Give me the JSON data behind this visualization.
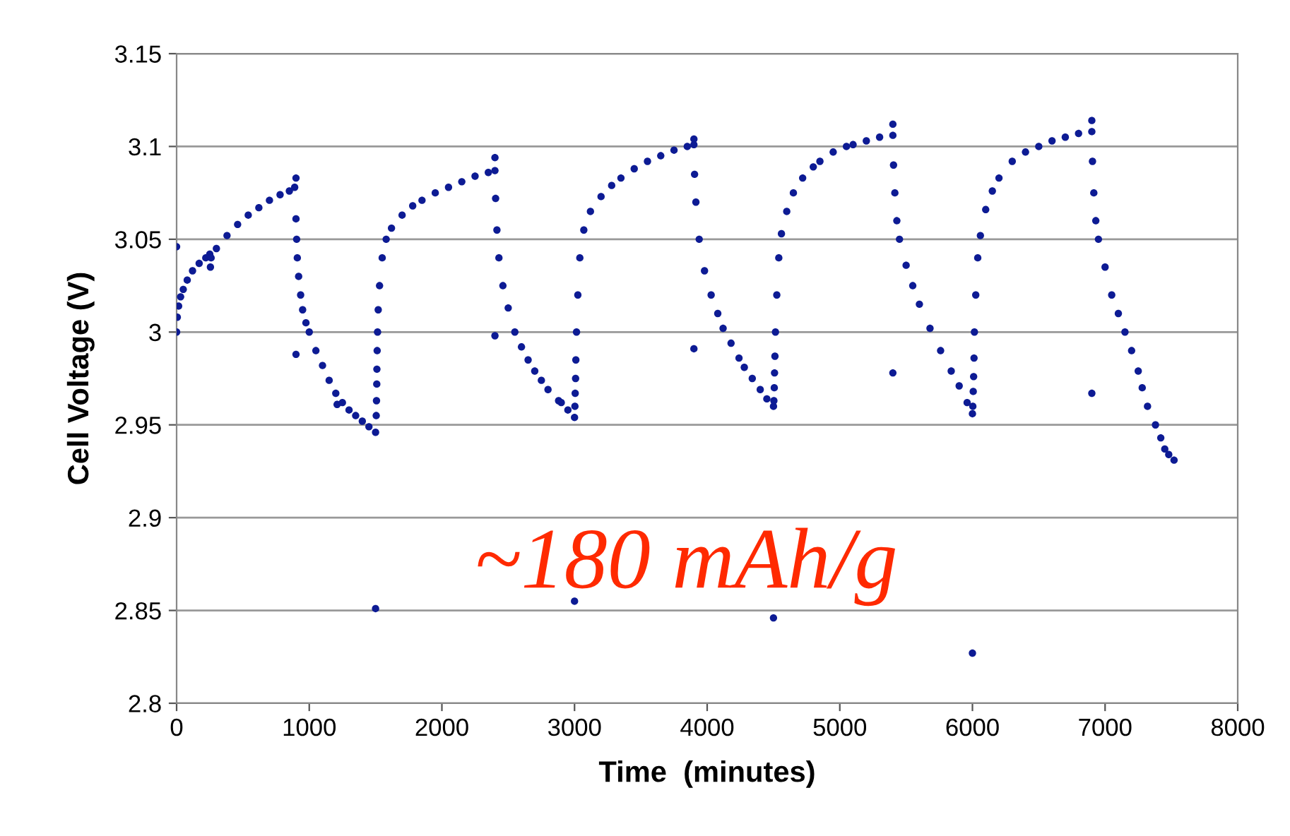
{
  "chart_data": {
    "type": "scatter",
    "xlabel": "Time  (minutes)",
    "ylabel": "Cell Voltage (V)",
    "xlim": [
      0,
      8000
    ],
    "xticks": [
      0,
      1000,
      2000,
      3000,
      4000,
      5000,
      6000,
      7000,
      8000
    ],
    "ylim": [
      2.8,
      3.15
    ],
    "yticks": [
      2.8,
      2.85,
      2.9,
      2.95,
      3,
      3.05,
      3.1,
      3.15
    ],
    "grid": "y",
    "marker": "circle",
    "annotations": [
      "~180 mAh/g"
    ],
    "series": [
      {
        "color": "#0d1b94",
        "x": [
          0,
          5,
          15,
          30,
          50,
          80,
          120,
          170,
          220,
          250,
          255,
          260,
          300,
          380,
          460,
          540,
          620,
          700,
          780,
          850,
          890,
          900,
          900,
          905,
          910,
          920,
          935,
          950,
          975,
          1000,
          1050,
          1100,
          1150,
          1200,
          1210,
          1250,
          1300,
          1350,
          1400,
          1450,
          1500,
          1505,
          1507,
          1509,
          1510,
          1512,
          1515,
          1520,
          1530,
          1550,
          1580,
          1620,
          1700,
          1780,
          1850,
          1950,
          2050,
          2150,
          2250,
          2350,
          2400,
          2400,
          2405,
          2415,
          2430,
          2460,
          2500,
          2550,
          2600,
          2650,
          2700,
          2750,
          2800,
          2880,
          2900,
          2950,
          3000,
          3003,
          3005,
          3008,
          3010,
          3015,
          3025,
          3040,
          3070,
          3120,
          3200,
          3280,
          3350,
          3450,
          3550,
          3650,
          3750,
          3850,
          3900,
          3900,
          3905,
          3915,
          3940,
          3980,
          4030,
          4080,
          4120,
          4180,
          4240,
          4280,
          4340,
          4400,
          4450,
          4500,
          4503,
          4506,
          4508,
          4511,
          4515,
          4525,
          4540,
          4560,
          4600,
          4650,
          4720,
          4800,
          4850,
          4950,
          5050,
          5100,
          5200,
          5300,
          5400,
          5400,
          5405,
          5415,
          5430,
          5450,
          5500,
          5550,
          5600,
          5680,
          5760,
          5840,
          5900,
          5960,
          6000,
          6003,
          6006,
          6009,
          6012,
          6015,
          6025,
          6040,
          6060,
          6100,
          6150,
          6200,
          6300,
          6400,
          6500,
          6600,
          6700,
          6800,
          6900,
          6900,
          6905,
          6915,
          6930,
          6950,
          7000,
          7050,
          7100,
          7150,
          7200,
          7250,
          7280,
          7320,
          7380,
          7420,
          7450,
          7480,
          7520,
          0,
          900,
          1500,
          2400,
          3000,
          3900,
          4500,
          5400,
          6000,
          6900
        ],
        "values": [
          3.0,
          3.008,
          3.014,
          3.019,
          3.023,
          3.028,
          3.033,
          3.037,
          3.04,
          3.042,
          3.035,
          3.04,
          3.045,
          3.052,
          3.058,
          3.063,
          3.067,
          3.071,
          3.074,
          3.076,
          3.078,
          3.083,
          3.061,
          3.05,
          3.04,
          3.03,
          3.02,
          3.012,
          3.005,
          3.0,
          2.99,
          2.982,
          2.974,
          2.967,
          2.961,
          2.962,
          2.958,
          2.955,
          2.952,
          2.949,
          2.946,
          2.955,
          2.963,
          2.972,
          2.98,
          2.99,
          3.0,
          3.012,
          3.025,
          3.04,
          3.05,
          3.056,
          3.063,
          3.068,
          3.071,
          3.075,
          3.078,
          3.081,
          3.084,
          3.086,
          3.087,
          3.094,
          3.072,
          3.055,
          3.04,
          3.025,
          3.013,
          3.0,
          2.992,
          2.985,
          2.979,
          2.974,
          2.969,
          2.963,
          2.962,
          2.958,
          2.954,
          2.96,
          2.967,
          2.975,
          2.985,
          3.0,
          3.02,
          3.04,
          3.055,
          3.065,
          3.073,
          3.079,
          3.083,
          3.088,
          3.092,
          3.095,
          3.098,
          3.1,
          3.101,
          3.104,
          3.085,
          3.07,
          3.05,
          3.033,
          3.02,
          3.01,
          3.002,
          2.994,
          2.986,
          2.981,
          2.975,
          2.969,
          2.964,
          2.96,
          2.963,
          2.97,
          2.978,
          2.987,
          3.0,
          3.02,
          3.04,
          3.053,
          3.065,
          3.075,
          3.083,
          3.089,
          3.092,
          3.097,
          3.1,
          3.101,
          3.103,
          3.105,
          3.106,
          3.112,
          3.09,
          3.075,
          3.06,
          3.05,
          3.036,
          3.025,
          3.015,
          3.002,
          2.99,
          2.979,
          2.971,
          2.962,
          2.956,
          2.96,
          2.968,
          2.976,
          2.986,
          3.0,
          3.02,
          3.04,
          3.052,
          3.066,
          3.076,
          3.083,
          3.092,
          3.097,
          3.1,
          3.103,
          3.105,
          3.107,
          3.108,
          3.114,
          3.092,
          3.075,
          3.06,
          3.05,
          3.035,
          3.02,
          3.01,
          3.0,
          2.99,
          2.979,
          2.97,
          2.96,
          2.95,
          2.943,
          2.937,
          2.934,
          2.931,
          3.046,
          2.988,
          2.851,
          2.998,
          2.855,
          2.991,
          2.846,
          2.978,
          2.827,
          2.967
        ]
      }
    ]
  }
}
